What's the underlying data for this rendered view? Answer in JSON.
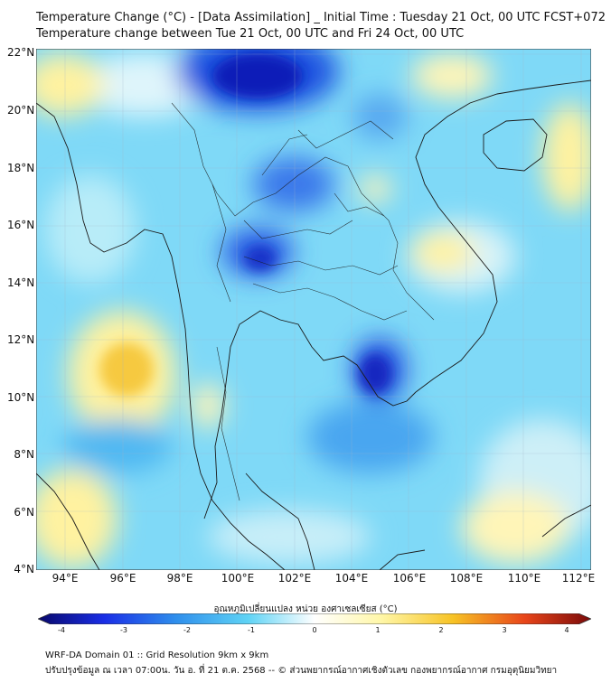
{
  "title_line1": "Temperature Change (°C) - [Data Assimilation] _ Initial Time : Tuesday 21 Oct, 00 UTC FCST+072",
  "title_line2": "Temperature change between Tue 21 Oct, 00 UTC and Fri 24 Oct, 00 UTC",
  "y_ticks": [
    "22°N",
    "20°N",
    "18°N",
    "16°N",
    "14°N",
    "12°N",
    "10°N",
    "8°N",
    "6°N",
    "4°N"
  ],
  "x_ticks": [
    "94°E",
    "96°E",
    "98°E",
    "100°E",
    "102°E",
    "104°E",
    "106°E",
    "108°E",
    "110°E",
    "112°E"
  ],
  "colorbar_title": "อุณหภูมิเปลี่ยนแปลง หน่วย องศาเซลเซียส (°C)",
  "colorbar_ticks": [
    "-4",
    "-3",
    "-2",
    "-1",
    "0",
    "1",
    "2",
    "3",
    "4"
  ],
  "footer_line1": "WRF-DA Domain 01 :: Grid Resolution 9km x 9km",
  "footer_line2": "ปรับปรุงข้อมูล ณ เวลา 07:00น. วัน อ. ที่ 21 ต.ค. 2568 -- © ส่วนพยากรณ์อากาศเชิงตัวเลข กองพยากรณ์อากาศ กรมอุตุนิยมวิทยา",
  "colors": {
    "neg_4": "#08086b",
    "neg_3": "#1a2ee6",
    "neg_2": "#2f8fec",
    "neg_1": "#5fd3f5",
    "zero": "#ffffff",
    "pos_1": "#fff7a8",
    "pos_2": "#f7c325",
    "pos_3": "#e8451a",
    "pos_4": "#7a0a0a"
  }
}
